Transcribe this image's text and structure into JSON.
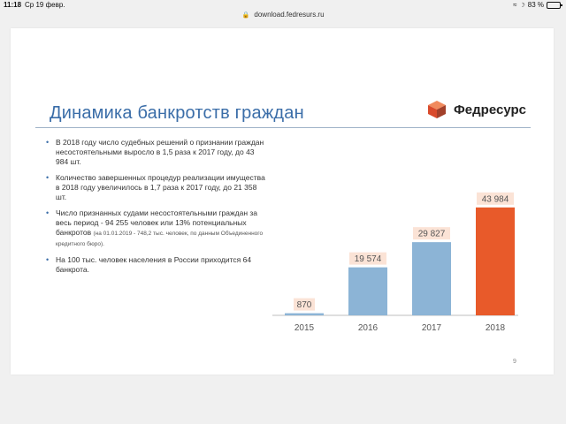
{
  "status_bar": {
    "time": "11:18",
    "date": "Ср 19 февр.",
    "battery": "83 %",
    "wifi_icon": "wifi-icon",
    "moon_icon": "moon-icon"
  },
  "address_bar": {
    "url": "download.fedresurs.ru",
    "lock_icon": "lock-icon"
  },
  "slide": {
    "title": "Динамика банкротств граждан",
    "logo_text": "Федресурс",
    "page_number": "9",
    "bullets": [
      {
        "text": "В 2018 году число судебных решений о признании граждан несостоятельными выросло в 1,5 раза к 2017 году, до 43 984 шт."
      },
      {
        "text": "Количество завершенных процедур реализации имущества в 2018 году увеличилось в 1,7 раза к 2017 году, до 21 358 шт."
      },
      {
        "text": "Число признанных судами несостоятельными граждан за весь период - 94 255 человек или 13% потенциальных банкротов",
        "note": "(на 01.01.2019 - 748,2 тыс. человек, по данным Объединенного кредитного бюро)."
      },
      {
        "text": "На 100 тыс. человек населения в России приходится 64 банкрота."
      }
    ]
  },
  "colors": {
    "title": "#3a6da8",
    "bar_blue": "#8cb4d6",
    "bar_orange": "#e85a2a",
    "label_bg": "#fbe3d6",
    "logo_red": "#d94a2b",
    "logo_orange": "#f08a5d",
    "logo_brown": "#a2402a"
  },
  "chart_data": {
    "type": "bar",
    "categories": [
      "2015",
      "2016",
      "2017",
      "2018"
    ],
    "values": [
      870,
      19574,
      29827,
      43984
    ],
    "data_labels": [
      "870",
      "19 574",
      "29 827",
      "43 984"
    ],
    "highlight_index": 3,
    "title": "",
    "xlabel": "",
    "ylabel": "",
    "ylim": [
      0,
      45000
    ],
    "grid": false,
    "legend": "none"
  }
}
